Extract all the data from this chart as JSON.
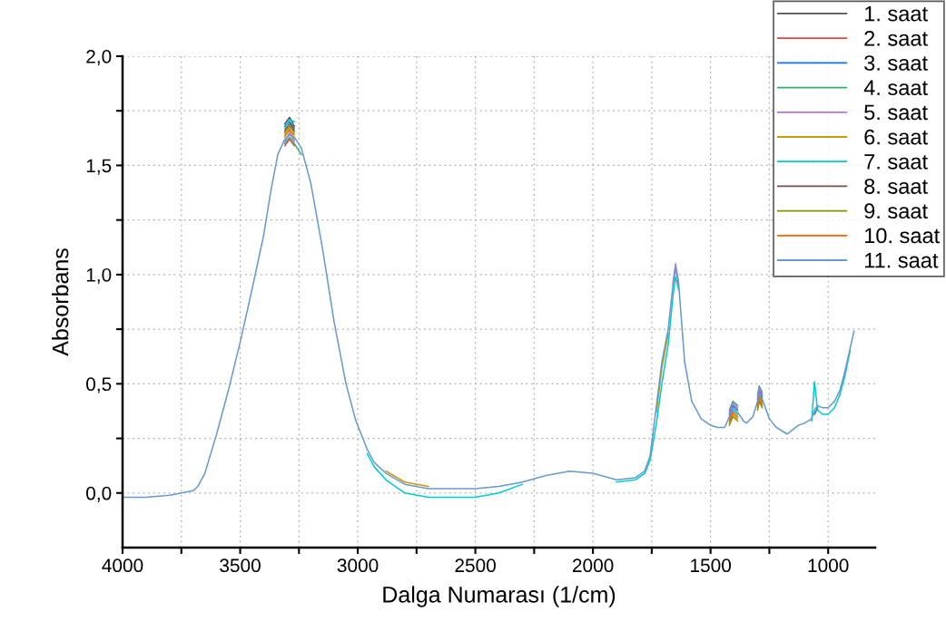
{
  "chart_data": {
    "type": "line",
    "xlabel": "Dalga Numarası (1/cm)",
    "ylabel": "Absorbans",
    "xlim": [
      4000,
      800
    ],
    "ylim": [
      -0.25,
      2.0
    ],
    "xticks": [
      4000,
      {
        "value": 3750,
        "label": null
      },
      3500,
      {
        "value": 3250,
        "label": null
      },
      3000,
      {
        "value": 2750,
        "label": null
      },
      2500,
      {
        "value": 2250,
        "label": null
      },
      2000,
      {
        "value": 1750,
        "label": null
      },
      1500,
      {
        "value": 1250,
        "label": null
      },
      1000
    ],
    "yticks": [
      {
        "value": 0,
        "label": "0,0"
      },
      {
        "value": 0.25,
        "label": null
      },
      {
        "value": 0.5,
        "label": "0,5"
      },
      {
        "value": 0.75,
        "label": null
      },
      {
        "value": 1.0,
        "label": "1,0"
      },
      {
        "value": 1.25,
        "label": null
      },
      {
        "value": 1.5,
        "label": "1,5"
      },
      {
        "value": 1.75,
        "label": null
      },
      {
        "value": 2.0,
        "label": "2,0"
      }
    ],
    "grid": true,
    "legend": "top right",
    "marker": "none",
    "line_style": "solid",
    "x": [
      4000,
      3900,
      3800,
      3750,
      3700,
      3680,
      3650,
      3600,
      3550,
      3500,
      3450,
      3400,
      3370,
      3340,
      3310,
      3290,
      3270,
      3240,
      3200,
      3150,
      3100,
      3050,
      3008,
      2960,
      2930,
      2880,
      2800,
      2700,
      2600,
      2500,
      2400,
      2300,
      2200,
      2100,
      2000,
      1900,
      1820,
      1780,
      1757,
      1730,
      1707,
      1680,
      1660,
      1649,
      1635,
      1610,
      1580,
      1540,
      1500,
      1470,
      1440,
      1420,
      1405,
      1385,
      1360,
      1347,
      1320,
      1300,
      1293,
      1280,
      1250,
      1220,
      1174,
      1150,
      1127,
      1100,
      1070,
      1058,
      1045,
      1023,
      1000,
      973,
      950,
      930,
      907,
      890
    ],
    "series": [
      {
        "name": "1. saat",
        "color": "#515151",
        "x": [
          3310,
          3290,
          3270
        ],
        "values": [
          1.69,
          1.72,
          1.68
        ]
      },
      {
        "name": "2. saat",
        "color": "#f14040",
        "x": [
          3310,
          3290,
          3270
        ],
        "values": [
          1.59,
          1.62,
          1.59
        ]
      },
      {
        "name": "3. saat",
        "color": "#1a6fdf",
        "x": [
          3310,
          3290,
          3270,
          1500,
          1420,
          1405,
          1385,
          1347,
          1300,
          1293,
          1280,
          1070,
          1058,
          1045
        ],
        "values": [
          1.68,
          1.7,
          1.67,
          null,
          0.36,
          0.4,
          0.38,
          null,
          0.43,
          0.47,
          0.44,
          null,
          0.36,
          0.39
        ]
      },
      {
        "name": "4. saat",
        "color": "#37ad6b",
        "x": [
          3310,
          3290,
          3270,
          3240,
          1500,
          1420,
          1405,
          1385,
          1347,
          1300,
          1293,
          1280
        ],
        "values": [
          1.6,
          1.63,
          1.6,
          1.55,
          null,
          0.38,
          0.42,
          0.4,
          null,
          0.45,
          0.49,
          0.46
        ]
      },
      {
        "name": "5. saat",
        "color": "#b177de",
        "x": [
          3310,
          3290,
          3270,
          1670,
          1660,
          1649,
          1635,
          1500,
          1420,
          1405,
          1385,
          1347,
          1300,
          1293,
          1280
        ],
        "values": [
          1.61,
          1.65,
          1.61,
          null,
          0.96,
          1.05,
          0.96,
          null,
          0.37,
          0.41,
          0.39,
          null,
          0.44,
          0.48,
          0.45
        ]
      },
      {
        "name": "6. saat",
        "color": "#cc9900",
        "x": [
          3310,
          3290,
          3270,
          3000,
          2880,
          2800,
          2700,
          2000,
          1730,
          1707,
          1680,
          1500,
          1420,
          1405,
          1385,
          1347,
          1300,
          1293,
          1280
        ],
        "values": [
          1.63,
          1.67,
          1.62,
          null,
          0.1,
          0.05,
          0.03,
          null,
          0.37,
          0.57,
          0.73,
          null,
          0.32,
          0.36,
          0.34,
          null,
          0.39,
          0.43,
          0.4
        ]
      },
      {
        "name": "7. saat",
        "color": "#00cbcc",
        "x": [
          3310,
          3290,
          3270,
          3100,
          2960,
          2930,
          2880,
          2800,
          2700,
          2600,
          2500,
          2400,
          2300,
          2100,
          1900,
          1820,
          1780,
          1757,
          1730,
          1707,
          1680,
          1660,
          1649,
          1635,
          1500,
          1420,
          1405,
          1385,
          1347,
          1300,
          1293,
          1280,
          1100,
          1070,
          1058,
          1045,
          1023,
          1000,
          973,
          950,
          930,
          907
        ],
        "values": [
          1.67,
          1.71,
          1.7,
          null,
          0.18,
          0.12,
          0.06,
          0.0,
          -0.02,
          -0.02,
          -0.02,
          0.0,
          0.04,
          null,
          0.05,
          0.06,
          0.09,
          0.15,
          0.32,
          0.5,
          0.68,
          0.9,
          0.99,
          0.93,
          null,
          0.34,
          0.38,
          0.36,
          null,
          0.41,
          0.45,
          0.42,
          null,
          0.33,
          0.51,
          0.38,
          0.36,
          0.36,
          0.39,
          0.45,
          0.53,
          0.65
        ]
      },
      {
        "name": "8. saat",
        "color": "#7d4e4e",
        "x": [
          3310,
          3290,
          3270
        ],
        "values": [
          1.66,
          1.69,
          1.66
        ]
      },
      {
        "name": "9. saat",
        "color": "#8e8e00",
        "x": [
          3310,
          3290,
          3270,
          1500,
          1420,
          1405,
          1385,
          1347,
          1300,
          1293,
          1280
        ],
        "values": [
          1.65,
          1.68,
          1.65,
          null,
          0.31,
          0.35,
          0.33,
          null,
          0.38,
          0.42,
          0.39
        ]
      },
      {
        "name": "10. saat",
        "color": "#fb6501",
        "x": [
          3310,
          3290,
          3270,
          1500,
          1420,
          1405,
          1385,
          1347,
          1300,
          1293,
          1280
        ],
        "values": [
          1.64,
          1.66,
          1.64,
          null,
          0.33,
          0.37,
          0.35,
          null,
          0.4,
          0.44,
          0.41
        ]
      },
      {
        "name": "11. saat",
        "color": "#6699cc",
        "values": [
          -0.02,
          -0.02,
          -0.01,
          0.0,
          0.01,
          0.03,
          0.09,
          0.27,
          0.47,
          0.69,
          0.93,
          1.18,
          1.38,
          1.55,
          1.62,
          1.64,
          1.63,
          1.58,
          1.42,
          1.12,
          0.78,
          0.5,
          0.33,
          0.2,
          0.14,
          0.09,
          0.04,
          0.02,
          0.02,
          0.02,
          0.03,
          0.05,
          0.08,
          0.1,
          0.09,
          0.06,
          0.07,
          0.1,
          0.17,
          0.4,
          0.6,
          0.75,
          0.95,
          1.03,
          0.95,
          0.6,
          0.42,
          0.34,
          0.31,
          0.3,
          0.3,
          0.35,
          0.39,
          0.37,
          0.33,
          0.32,
          0.35,
          0.42,
          0.46,
          0.43,
          0.34,
          0.3,
          0.27,
          0.29,
          0.31,
          0.32,
          0.34,
          0.38,
          0.4,
          0.39,
          0.39,
          0.42,
          0.47,
          0.55,
          0.66,
          0.74
        ]
      }
    ]
  }
}
